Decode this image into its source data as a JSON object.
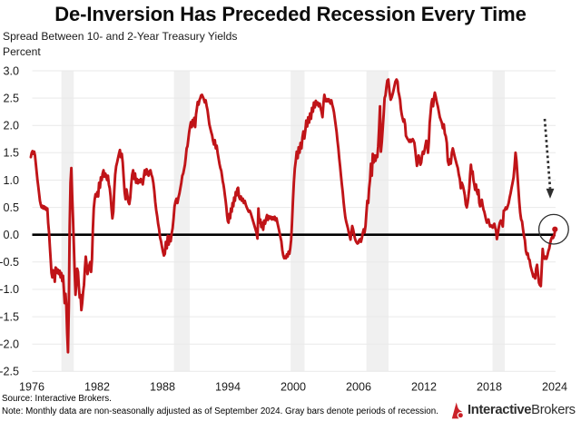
{
  "page": {
    "title": "De-Inversion Has Preceded Recession Every Time",
    "subtitle": "Spread Between 10- and 2-Year Treasury Yields",
    "unit_label": "Percent",
    "source_text": "Source: Interactive Brokers.",
    "note_text": "Note: Monthly data are non-seasonally adjusted as of September 2024. Gray bars denote periods of recession.",
    "logo": {
      "brand_bold": "Interactive",
      "brand_regular": "Brokers",
      "icon": "interactive-brokers-flame-icon"
    }
  },
  "chart_data": {
    "type": "line",
    "title": "De-Inversion Has Preceded Recession Every Time",
    "subtitle": "Spread Between 10- and 2-Year Treasury Yields",
    "ylabel": "Percent",
    "xlabel": "",
    "ylim": [
      -2.5,
      3.0
    ],
    "xlim": [
      1976,
      2024.75
    ],
    "y_ticks": [
      3.0,
      2.5,
      2.0,
      1.5,
      1.0,
      0.5,
      0.0,
      -0.5,
      -1.0,
      -1.5,
      -2.0,
      -2.5
    ],
    "y_tick_labels": [
      "3.0",
      "2.5",
      "2.0",
      "1.5",
      "1.0",
      "0.5",
      "0.0",
      "-0.5",
      "-1.0",
      "-1.5",
      "-2.0",
      "-2.5"
    ],
    "x_ticks": [
      1976,
      1982,
      1988,
      1994,
      2000,
      2006,
      2012,
      2018,
      2024
    ],
    "x_tick_labels": [
      "1976",
      "1982",
      "1988",
      "1994",
      "2000",
      "2006",
      "2012",
      "2018",
      "2024"
    ],
    "grid": "horizontal",
    "zero_line": true,
    "legend": "none",
    "series": [
      {
        "name": "10-year minus 2-year Treasury yield spread (percent, monthly)",
        "start_year": 1976,
        "start_month": 6,
        "frequency": "monthly",
        "values": [
          1.42,
          1.5,
          1.53,
          1.48,
          1.52,
          1.45,
          1.3,
          1.15,
          1.0,
          0.88,
          0.75,
          0.62,
          0.55,
          0.5,
          0.53,
          0.48,
          0.52,
          0.47,
          0.5,
          0.45,
          0.48,
          0.21,
          0.05,
          -0.21,
          -0.45,
          -0.7,
          -0.78,
          -0.65,
          -0.7,
          -0.86,
          -0.6,
          -0.62,
          -0.7,
          -0.64,
          -0.72,
          -0.66,
          -0.78,
          -0.7,
          -0.85,
          -0.75,
          -1.0,
          -1.25,
          -1.08,
          -1.3,
          -1.8,
          -2.15,
          -1.3,
          0.15,
          0.95,
          1.22,
          0.72,
          0.3,
          -0.18,
          -0.68,
          -1.1,
          -0.88,
          -0.62,
          -0.68,
          -0.95,
          -1.15,
          -1.1,
          -1.38,
          -1.25,
          -1.05,
          -0.92,
          -0.62,
          -0.4,
          -0.55,
          -0.72,
          -0.64,
          -0.56,
          -0.5,
          -0.68,
          -0.45,
          0.1,
          0.48,
          0.64,
          0.74,
          0.7,
          0.78,
          0.7,
          0.95,
          0.86,
          1.05,
          1.0,
          1.12,
          1.18,
          1.06,
          1.12,
          1.08,
          1.0,
          1.08,
          0.92,
          0.85,
          0.7,
          0.48,
          0.3,
          0.42,
          0.8,
          1.1,
          1.25,
          1.32,
          1.4,
          1.48,
          1.55,
          1.42,
          1.48,
          1.32,
          1.05,
          0.78,
          0.65,
          0.83,
          0.72,
          0.6,
          0.56,
          0.68,
          0.92,
          1.1,
          1.18,
          1.02,
          1.12,
          0.95,
          1.02,
          0.94,
          1.0,
          0.96,
          1.02,
          0.98,
          0.92,
          1.05,
          1.18,
          1.1,
          1.2,
          1.14,
          1.08,
          1.16,
          1.18,
          1.1,
          1.05,
          0.95,
          0.8,
          0.6,
          0.45,
          0.34,
          0.2,
          0.1,
          -0.05,
          -0.12,
          -0.22,
          -0.31,
          -0.38,
          -0.35,
          -0.13,
          -0.25,
          -0.02,
          -0.18,
          -0.03,
          -0.12,
          0.02,
          0.12,
          0.3,
          0.52,
          0.61,
          0.66,
          0.58,
          0.68,
          0.75,
          0.85,
          0.95,
          1.08,
          1.12,
          1.2,
          1.28,
          1.42,
          1.58,
          1.62,
          1.75,
          1.88,
          1.98,
          2.06,
          1.97,
          2.1,
          2.0,
          2.14,
          1.97,
          2.2,
          2.31,
          2.43,
          2.38,
          2.46,
          2.5,
          2.55,
          2.56,
          2.52,
          2.48,
          2.42,
          2.46,
          2.36,
          2.28,
          2.15,
          2.02,
          1.95,
          1.88,
          1.82,
          1.72,
          1.65,
          1.73,
          1.58,
          1.63,
          1.5,
          1.4,
          1.3,
          1.22,
          1.17,
          1.08,
          0.98,
          0.92,
          0.83,
          0.72,
          0.62,
          0.5,
          0.35,
          0.25,
          0.22,
          0.38,
          0.3,
          0.48,
          0.42,
          0.58,
          0.52,
          0.68,
          0.62,
          0.78,
          0.72,
          0.84,
          0.86,
          0.7,
          0.65,
          0.7,
          0.62,
          0.66,
          0.58,
          0.62,
          0.55,
          0.5,
          0.46,
          0.42,
          0.44,
          0.4,
          0.34,
          0.28,
          0.22,
          0.16,
          0.1,
          0.04,
          -0.07,
          0.48,
          0.22,
          0.28,
          0.14,
          0.22,
          0.09,
          0.26,
          0.2,
          0.29,
          0.36,
          0.27,
          0.34,
          0.3,
          0.33,
          0.28,
          0.32,
          0.28,
          0.33,
          0.26,
          0.3,
          0.21,
          0.13,
          0.05,
          -0.04,
          -0.12,
          -0.28,
          -0.38,
          -0.43,
          -0.4,
          -0.43,
          -0.36,
          -0.4,
          -0.31,
          -0.35,
          -0.25,
          -0.1,
          0.2,
          0.6,
          0.95,
          1.21,
          1.35,
          1.52,
          1.4,
          1.6,
          1.5,
          1.68,
          1.58,
          1.78,
          1.89,
          1.76,
          1.9,
          2.09,
          1.98,
          2.15,
          2.05,
          2.22,
          2.12,
          2.32,
          2.25,
          2.42,
          2.33,
          2.45,
          2.38,
          2.42,
          2.35,
          2.4,
          2.32,
          2.25,
          2.15,
          2.4,
          2.56,
          2.48,
          2.44,
          2.48,
          2.44,
          2.48,
          2.44,
          2.4,
          2.46,
          2.38,
          2.32,
          2.24,
          2.12,
          2.0,
          1.88,
          1.72,
          1.58,
          1.4,
          1.25,
          1.08,
          0.92,
          0.78,
          0.6,
          0.45,
          0.32,
          0.24,
          0.18,
          0.12,
          0.04,
          -0.02,
          -0.09,
          0.05,
          0.16,
          0.1,
          0.02,
          -0.06,
          -0.11,
          -0.14,
          -0.16,
          -0.15,
          -0.1,
          -0.08,
          -0.13,
          -0.06,
          0.03,
          0.1,
          0.04,
          0.16,
          0.4,
          0.62,
          0.58,
          0.85,
          1.0,
          1.3,
          1.08,
          1.48,
          1.32,
          1.45,
          1.35,
          1.45,
          1.42,
          1.62,
          1.95,
          2.35,
          1.52,
          1.7,
          1.95,
          2.2,
          2.5,
          2.55,
          2.7,
          2.82,
          2.84,
          2.62,
          2.47,
          2.52,
          2.6,
          2.7,
          2.8,
          2.84,
          2.8,
          2.62,
          2.55,
          2.47,
          2.3,
          2.2,
          2.13,
          2.07,
          2.11,
          2.02,
          1.81,
          1.78,
          1.75,
          1.73,
          1.7,
          1.74,
          1.7,
          1.72,
          1.75,
          1.72,
          1.68,
          1.55,
          1.4,
          1.26,
          1.35,
          1.45,
          1.38,
          1.28,
          1.32,
          1.45,
          1.52,
          1.48,
          1.55,
          1.64,
          1.72,
          1.68,
          1.5,
          1.7,
          2.05,
          2.22,
          2.4,
          2.48,
          2.35,
          2.5,
          2.6,
          2.52,
          2.42,
          2.35,
          2.25,
          2.15,
          2.1,
          2.05,
          1.95,
          2.02,
          1.85,
          1.8,
          1.68,
          1.35,
          1.28,
          1.38,
          1.3,
          1.5,
          1.58,
          1.5,
          1.42,
          1.35,
          1.28,
          1.22,
          1.1,
          1.02,
          0.85,
          0.95,
          0.9,
          0.82,
          0.72,
          0.55,
          0.5,
          0.58,
          0.7,
          0.85,
          1.1,
          1.28,
          1.12,
          1.16,
          1.0,
          0.92,
          0.82,
          0.92,
          0.8,
          0.74,
          0.82,
          0.58,
          0.52,
          0.55,
          0.64,
          0.54,
          0.46,
          0.42,
          0.35,
          0.28,
          0.22,
          0.24,
          0.28,
          0.2,
          0.15,
          0.17,
          0.15,
          0.13,
          0.18,
          0.2,
          0.13,
          0.08,
          -0.08,
          0.02,
          0.14,
          0.22,
          0.26,
          0.22,
          0.15,
          0.44,
          0.45,
          0.5,
          0.47,
          0.52,
          0.58,
          0.68,
          0.76,
          0.86,
          0.95,
          1.05,
          1.25,
          1.5,
          1.35,
          1.1,
          0.85,
          0.6,
          0.4,
          0.28,
          0.24,
          0.1,
          -0.02,
          -0.1,
          -0.29,
          -0.36,
          -0.34,
          -0.44,
          -0.46,
          -0.57,
          -0.64,
          -0.7,
          -0.77,
          -0.73,
          -0.8,
          -0.62,
          -0.55,
          -0.72,
          -0.88,
          -0.92,
          -0.94,
          -0.6,
          -0.26,
          -0.42,
          -0.44,
          -0.4,
          -0.44,
          -0.38,
          -0.3,
          -0.25,
          -0.15,
          -0.08,
          -0.04,
          -0.06,
          -0.02,
          0.06
        ]
      }
    ],
    "recession_bands_years": [
      [
        1979.34,
        1980.47
      ],
      [
        1989.69,
        1991.15
      ],
      [
        2000.42,
        2001.71
      ],
      [
        2007.39,
        2009.43
      ],
      [
        2018.99,
        2020.12
      ]
    ],
    "annotations": {
      "arrow": {
        "type": "dashed-arrow-down",
        "from": {
          "year": 2023.8,
          "value": 2.12
        },
        "to": {
          "year": 2024.28,
          "value": 0.66
        }
      },
      "circle": {
        "type": "ellipse-highlight",
        "center_year": 2024.6,
        "center_value": 0.1,
        "radius_px": 16.3
      },
      "last_point_marker": {
        "year": 2024.71,
        "value": 0.1
      }
    },
    "colors": {
      "line": "#c01418",
      "zero_line": "#000000",
      "gridline": "#e9e9e9",
      "recession_band": "#f0f0f0",
      "text": "#1a1a1a",
      "annotation": "#2e2e2e",
      "logo_red": "#ca2128",
      "logo_text": "#2e2e2e",
      "background": "#ffffff"
    }
  }
}
